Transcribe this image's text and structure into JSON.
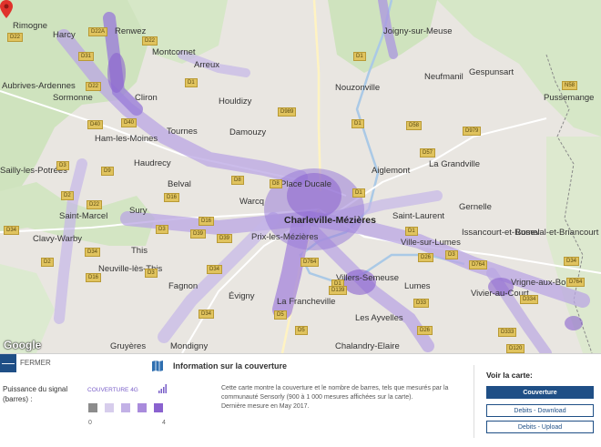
{
  "map": {
    "attribution": "Google",
    "places": [
      {
        "t": "Harcy",
        "c": "big"
      },
      {
        "t": "Renwez",
        "c": "big"
      },
      {
        "t": "Rimogne",
        "c": "big"
      },
      {
        "t": "Montcornet",
        "c": "big"
      },
      {
        "t": "Arreux",
        "c": "big"
      },
      {
        "t": "Joigny-sur-Meuse",
        "c": "big"
      },
      {
        "t": "Gespunsart",
        "c": "big"
      },
      {
        "t": "Aubrives-Ardennes",
        "c": "big"
      },
      {
        "t": "Sormonne",
        "c": "big"
      },
      {
        "t": "Cliron",
        "c": "big"
      },
      {
        "t": "Houldizy",
        "c": "big"
      },
      {
        "t": "Nouzonville",
        "c": "big"
      },
      {
        "t": "Neufmanil",
        "c": "big"
      },
      {
        "t": "Pussemange",
        "c": "big"
      },
      {
        "t": "Tournes",
        "c": "big"
      },
      {
        "t": "Ham-les-Moines",
        "c": "big"
      },
      {
        "t": "Damouzy",
        "c": "big"
      },
      {
        "t": "Haudrecy",
        "c": "big"
      },
      {
        "t": "Aiglemont",
        "c": "big"
      },
      {
        "t": "La Grandville",
        "c": "big"
      },
      {
        "t": "Belval",
        "c": "big"
      },
      {
        "t": "Warcq",
        "c": "big"
      },
      {
        "t": "Place Ducale",
        "c": "big"
      },
      {
        "t": "Gernelle",
        "c": "big"
      },
      {
        "t": "Sury",
        "c": "big"
      },
      {
        "t": "Saint-Laurent",
        "c": "big"
      },
      {
        "t": "Charleville-Mézières",
        "c": "city"
      },
      {
        "t": "Issancourt-et-Rumel",
        "c": "big"
      },
      {
        "t": "Boseval-et-Briancourt",
        "c": "big"
      },
      {
        "t": "Clavy-Warby",
        "c": "big"
      },
      {
        "t": "Prix-les-Mézières",
        "c": "big"
      },
      {
        "t": "Ville-sur-Lumes",
        "c": "big"
      },
      {
        "t": "This",
        "c": "big"
      },
      {
        "t": "Villers-Semeuse",
        "c": "big"
      },
      {
        "t": "Neuville-lès-This",
        "c": "big"
      },
      {
        "t": "Fagnon",
        "c": "big"
      },
      {
        "t": "Lumes",
        "c": "big"
      },
      {
        "t": "Vrigne-aux-Bois",
        "c": "big"
      },
      {
        "t": "Vivier-au-Court",
        "c": "big"
      },
      {
        "t": "Évigny",
        "c": "big"
      },
      {
        "t": "La Francheville",
        "c": "big"
      },
      {
        "t": "Les Ayvelles",
        "c": "big"
      },
      {
        "t": "Gruyères",
        "c": "big"
      },
      {
        "t": "Mondigny",
        "c": "big"
      },
      {
        "t": "Chalandry-Elaire",
        "c": "big"
      },
      {
        "t": "Saint-Marcel",
        "c": "big"
      },
      {
        "t": "Sailly-les-Potrées",
        "c": "big"
      }
    ],
    "roads": [
      "D22",
      "D22A",
      "D31",
      "D22",
      "D1",
      "D22",
      "D40",
      "D40",
      "D989",
      "D1",
      "D1",
      "D58",
      "D57",
      "D979",
      "N58",
      "D1",
      "D3",
      "D9",
      "D16",
      "D39",
      "D8",
      "D16",
      "D8",
      "D39",
      "D34",
      "D34",
      "D3",
      "D16",
      "D2",
      "D3",
      "D34",
      "D34",
      "D764",
      "D1",
      "D5",
      "D5",
      "D139",
      "D33",
      "D333",
      "D334",
      "D764",
      "D26",
      "D3",
      "D26",
      "D764",
      "D120",
      "D34",
      "D1",
      "D2",
      "D22"
    ]
  },
  "panel": {
    "close_label": "FERMER",
    "legend_title": "Puissance du signal (barres) :",
    "legend_caption": "COUVERTURE 4G",
    "legend_min": "0",
    "legend_max": "4",
    "legend_colors": [
      "#8c8c8c",
      "#d7cdec",
      "#c2b1e6",
      "#a98bdc",
      "#8a62cf"
    ],
    "info_title": "Information sur la couverture",
    "info_line1": "Cette carte montre la couverture et le nombre de barres, tels que mesurés par la communauté Sensorly (900 à 1 000 mesures affichées sur la carte).",
    "info_line2": "Dernière mesure en May 2017.",
    "see_map": "Voir la carte:",
    "buttons": [
      "Couverture",
      "Debits - Download",
      "Debits - Upload"
    ]
  }
}
